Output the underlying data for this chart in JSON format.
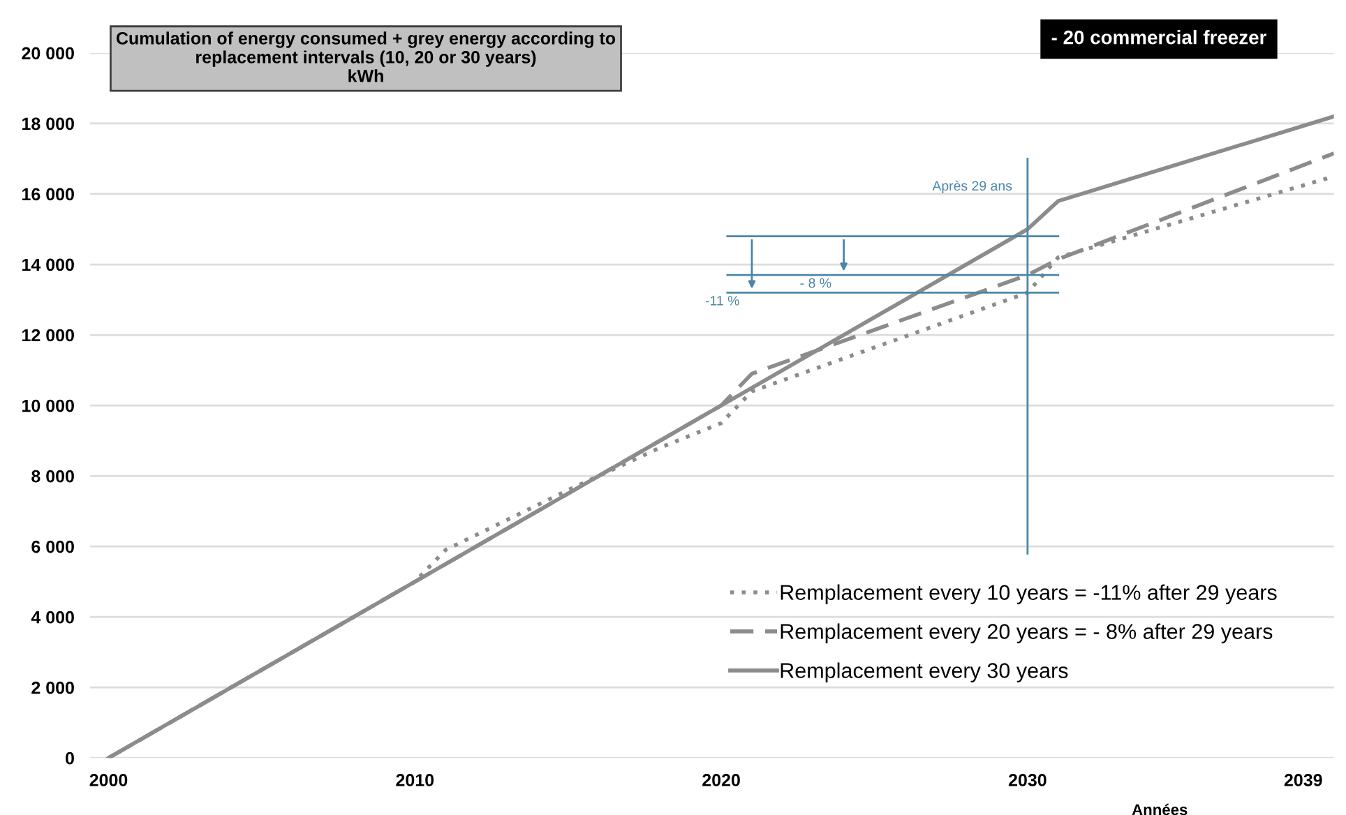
{
  "chart_data": {
    "type": "line",
    "title": "Cumulation of energy consumed + grey energy according to\nreplacement intervals (10, 20 or 30 years)\nkWh",
    "subtitle": "- 20 commercial freezer",
    "xlabel": "Années",
    "series": [
      {
        "name": "Remplacement every 10 years = -11% after 29 years",
        "color": "#8c8c8c",
        "line_style": "dotted",
        "x": [
          2000,
          2010,
          2011,
          2015,
          2018,
          2020,
          2021,
          2030,
          2031,
          2040
        ],
        "values": [
          0,
          5000,
          5900,
          7600,
          8800,
          9500,
          10400,
          13200,
          14200,
          16500
        ]
      },
      {
        "name": "Remplacement every 20 years = - 8% after 29 years",
        "color": "#8c8c8c",
        "line_style": "dashed",
        "x": [
          2000,
          2020,
          2021,
          2030,
          2031,
          2040
        ],
        "values": [
          0,
          10000,
          10900,
          13700,
          14150,
          17150
        ]
      },
      {
        "name": "Remplacement every 30 years",
        "color": "#8c8c8c",
        "line_style": "solid",
        "x": [
          2000,
          2020,
          2029,
          2030,
          2031,
          2040
        ],
        "values": [
          0,
          10000,
          14500,
          15000,
          15800,
          18200
        ]
      }
    ],
    "xlim": [
      1999.4,
      2040
    ],
    "xticks": [
      2000,
      2010,
      2020,
      2030,
      2039
    ],
    "ylim": [
      0,
      20000
    ],
    "yticks": [
      {
        "value": 0,
        "label": "0"
      },
      {
        "value": 2000,
        "label": "2 000"
      },
      {
        "value": 4000,
        "label": "4 000"
      },
      {
        "value": 6000,
        "label": "6 000"
      },
      {
        "value": 8000,
        "label": "8 000"
      },
      {
        "value": 10000,
        "label": "10 000"
      },
      {
        "value": 12000,
        "label": "12 000"
      },
      {
        "value": 14000,
        "label": "14 000"
      },
      {
        "value": 16000,
        "label": "16 000"
      },
      {
        "value": 18000,
        "label": "18 000"
      },
      {
        "value": 20000,
        "label": "20 000"
      }
    ],
    "grid": "y",
    "legend": "bottom right",
    "ref_lines": [
      {
        "axis": "x",
        "value": 2030,
        "label": "Après 29 ans",
        "color": "#4a86a8"
      },
      {
        "axis": "y",
        "value": 14800,
        "color": "#4a86a8"
      },
      {
        "axis": "y",
        "value": 13700,
        "color": "#4a86a8"
      },
      {
        "axis": "y",
        "value": 13200,
        "color": "#4a86a8"
      }
    ],
    "annotations": [
      {
        "text": "-11 %",
        "x": 2021,
        "y": 13200
      },
      {
        "text": "- 8 %",
        "x": 2024,
        "y": 13700
      }
    ]
  }
}
